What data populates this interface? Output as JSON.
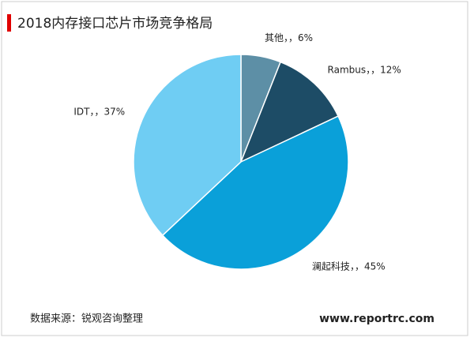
{
  "chart_data": {
    "type": "pie",
    "title": "2018内存接口芯片市场竞争格局",
    "categories": [
      "其他",
      "Rambus",
      "澜起科技",
      "IDT"
    ],
    "values": [
      6,
      12,
      45,
      37
    ],
    "value_labels": [
      "6%",
      "12%",
      "45%",
      "37%"
    ],
    "label_separator": "，，",
    "colors": [
      "#5d8fa6",
      "#1d4c66",
      "#0aa0d9",
      "#6fcdf3"
    ],
    "source": "数据来源：锐观咨询整理",
    "watermark": "www.reportrc.com"
  }
}
